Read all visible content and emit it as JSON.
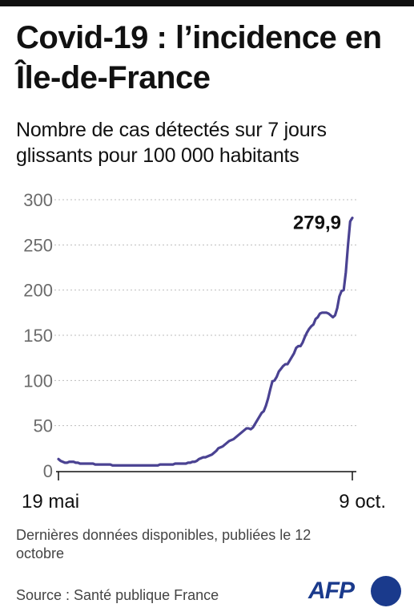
{
  "header": {
    "title": "Covid-19 : l’incidence en Île-de-France",
    "subtitle": "Nombre de cas détectés sur 7 jours glissants pour 100 000 habitants"
  },
  "footer": {
    "note": "Dernières données disponibles, publiées le 12 octobre",
    "source": "Source : Santé publique France",
    "logo_text": "AFP"
  },
  "colors": {
    "line": "#4a4292",
    "grid": "#bdbdbd",
    "brand": "#1a3a8c"
  },
  "chart_data": {
    "type": "line",
    "title": "Covid-19 : l’incidence en Île-de-France",
    "subtitle": "Nombre de cas détectés sur 7 jours glissants pour 100 000 habitants",
    "xlabel": "",
    "ylabel": "",
    "x_start": "19 mai",
    "x_end": "9 oct.",
    "x_tick_labels": [
      "19 mai",
      "9 oct."
    ],
    "y_ticks": [
      0,
      50,
      100,
      150,
      200,
      250,
      300
    ],
    "ylim": [
      0,
      300
    ],
    "grid": true,
    "last_value_label": "279,9",
    "series": [
      {
        "values": [
          13,
          11,
          10,
          9,
          9,
          10,
          10,
          10,
          9,
          9,
          8,
          8,
          8,
          8,
          8,
          8,
          8,
          7,
          7,
          7,
          7,
          7,
          7,
          7,
          7,
          6,
          6,
          6,
          6,
          6,
          6,
          6,
          6,
          6,
          6,
          6,
          6,
          6,
          6,
          6,
          6,
          6,
          6,
          6,
          6,
          6,
          6,
          7,
          7,
          7,
          7,
          7,
          7,
          7,
          8,
          8,
          8,
          8,
          8,
          8,
          9,
          9,
          10,
          10,
          11,
          13,
          14,
          15,
          15,
          16,
          17,
          18,
          20,
          22,
          25,
          26,
          27,
          29,
          31,
          33,
          34,
          35,
          37,
          39,
          41,
          43,
          45,
          47,
          47,
          46,
          48,
          52,
          56,
          60,
          64,
          66,
          72,
          80,
          90,
          99,
          100,
          104,
          110,
          113,
          116,
          118,
          118,
          122,
          126,
          130,
          136,
          138,
          138,
          142,
          148,
          153,
          157,
          160,
          162,
          168,
          170,
          174,
          175,
          175,
          175,
          174,
          172,
          170,
          172,
          180,
          193,
          199,
          200,
          220,
          250,
          276,
          279.9
        ]
      }
    ]
  }
}
